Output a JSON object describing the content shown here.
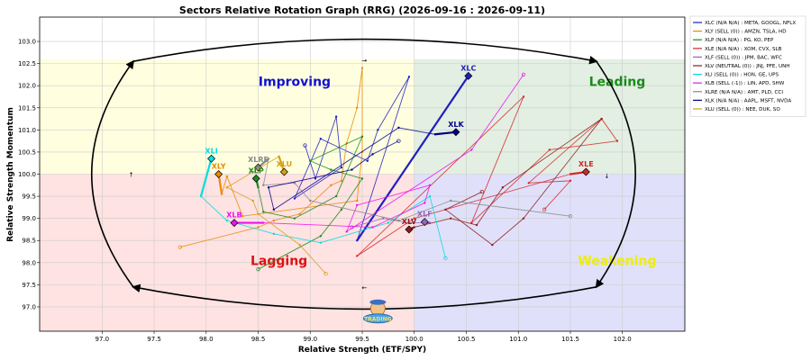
{
  "chart_data": {
    "type": "scatter",
    "title": "Sectors Relative Rotation Graph (RRG) (2026-09-16 : 2026-09-11)",
    "xlabel": "Relative Strength (ETF/SPY)",
    "ylabel": "Relative Strength Momentum",
    "xlim": [
      96.4,
      102.6
    ],
    "ylim": [
      96.45,
      103.55
    ],
    "xticks": [
      "97.0",
      "97.5",
      "98.0",
      "98.5",
      "99.0",
      "99.5",
      "100.0",
      "100.5",
      "101.0",
      "101.5",
      "102.0"
    ],
    "yticks": [
      "97.0",
      "97.5",
      "98.0",
      "98.5",
      "99.0",
      "99.5",
      "100.0",
      "100.5",
      "101.0",
      "101.5",
      "102.0",
      "102.5",
      "103.0"
    ],
    "grid": true,
    "legend_position": "upper right, outside",
    "quadrants": [
      {
        "name": "Improving",
        "color": "#1111cc",
        "fill": "#ffffe0",
        "lx": 98.85,
        "ly": 102.1
      },
      {
        "name": "Leading",
        "color": "#1a8a1a",
        "fill": "#e2efe2",
        "lx": 101.95,
        "ly": 102.1
      },
      {
        "name": "Lagging",
        "color": "#dd1111",
        "fill": "#ffe2e2",
        "lx": 98.7,
        "ly": 98.05
      },
      {
        "name": "Weakening",
        "color": "#eeee00",
        "fill": "#e0e0fa",
        "lx": 101.95,
        "ly": 98.05
      }
    ],
    "series": [
      {
        "name": "XLC (N/A N/A) : META, GOOGL, NFLX",
        "label": "XLC",
        "color": "#1f1fbf",
        "points": [
          [
            98.95,
            100.65
          ],
          [
            99.05,
            99.9
          ],
          [
            99.25,
            101.3
          ],
          [
            99.3,
            100.15
          ],
          [
            98.85,
            99.45
          ],
          [
            99.1,
            100.8
          ],
          [
            99.55,
            100.3
          ],
          [
            99.65,
            101.0
          ],
          [
            99.95,
            102.2
          ],
          [
            99.45,
            98.5
          ],
          [
            100.52,
            102.22
          ]
        ]
      },
      {
        "name": "XLY (SELL (0)) : AMZN, TSLA, HD",
        "label": "XLY",
        "color": "#e68a00",
        "points": [
          [
            97.75,
            98.35
          ],
          [
            98.5,
            98.8
          ],
          [
            98.65,
            98.95
          ],
          [
            98.9,
            99.1
          ],
          [
            99.2,
            99.75
          ],
          [
            99.3,
            99.85
          ],
          [
            99.35,
            100.7
          ],
          [
            99.45,
            101.5
          ],
          [
            99.5,
            102.4
          ],
          [
            99.5,
            100.5
          ],
          [
            99.45,
            99.4
          ],
          [
            98.35,
            99.05
          ],
          [
            98.2,
            99.95
          ],
          [
            98.15,
            99.55
          ],
          [
            98.12,
            100.0
          ]
        ]
      },
      {
        "name": "XLP (N/A N/A) : PG, KO, PEP",
        "label": "XLP",
        "color": "#1a8a1a",
        "points": [
          [
            98.5,
            97.85
          ],
          [
            99.1,
            98.6
          ],
          [
            99.3,
            99.2
          ],
          [
            99.5,
            99.9
          ],
          [
            99.2,
            100.1
          ],
          [
            99.0,
            100.3
          ],
          [
            99.5,
            100.85
          ],
          [
            99.25,
            99.5
          ],
          [
            98.85,
            99.0
          ],
          [
            98.55,
            99.15
          ],
          [
            98.5,
            99.7
          ],
          [
            98.48,
            99.9
          ]
        ]
      },
      {
        "name": "XLE (N/A N/A) : XOM, CVX, SLB",
        "label": "XLE",
        "color": "#d62728",
        "points": [
          [
            101.25,
            99.2
          ],
          [
            101.5,
            99.85
          ],
          [
            101.1,
            99.8
          ],
          [
            101.8,
            101.25
          ],
          [
            101.95,
            100.75
          ],
          [
            101.3,
            100.55
          ],
          [
            100.55,
            98.9
          ],
          [
            101.05,
            101.75
          ],
          [
            99.45,
            98.15
          ],
          [
            100.0,
            99.0
          ],
          [
            101.5,
            100.0
          ],
          [
            101.65,
            100.05
          ]
        ]
      },
      {
        "name": "XLF (SELL (0)) : JPM, BAC, WFC",
        "label": "XLF",
        "color": "#9467bd",
        "points": [
          [
            99.4,
            98.8
          ],
          [
            99.7,
            99.0
          ],
          [
            99.95,
            98.9
          ],
          [
            100.15,
            98.9
          ],
          [
            100.1,
            98.92
          ]
        ]
      },
      {
        "name": "XLV (NEUTRAL (0)) : JNJ, PFE, UNH",
        "label": "XLV",
        "color": "#8c1c1c",
        "points": [
          [
            100.65,
            99.6
          ],
          [
            100.3,
            99.2
          ],
          [
            100.75,
            98.4
          ],
          [
            101.05,
            99.0
          ],
          [
            101.8,
            101.25
          ],
          [
            100.85,
            99.7
          ],
          [
            100.6,
            98.85
          ],
          [
            100.35,
            99.0
          ],
          [
            100.0,
            98.8
          ],
          [
            99.95,
            98.75
          ]
        ]
      },
      {
        "name": "XLI (SELL (0)) : HON, GE, UPS",
        "label": "XLI",
        "color": "#00dddd",
        "points": [
          [
            100.3,
            98.1
          ],
          [
            100.15,
            99.5
          ],
          [
            99.75,
            98.9
          ],
          [
            99.1,
            98.45
          ],
          [
            98.65,
            98.65
          ],
          [
            98.2,
            98.95
          ],
          [
            97.95,
            99.5
          ],
          [
            98.05,
            100.35
          ]
        ]
      },
      {
        "name": "XLB (SELL (-1)) : LIN, APD, SHW",
        "label": "XLB",
        "color": "#ee11ee",
        "points": [
          [
            101.05,
            102.25
          ],
          [
            100.55,
            100.55
          ],
          [
            99.35,
            98.7
          ],
          [
            99.45,
            99.3
          ],
          [
            100.15,
            99.75
          ],
          [
            100.1,
            99.35
          ],
          [
            99.6,
            98.8
          ],
          [
            98.55,
            98.9
          ],
          [
            98.27,
            98.9
          ]
        ]
      },
      {
        "name": "XLRE (N/A N/A) : AMT, PLD, CCI",
        "label": "XLRE",
        "color": "#888888",
        "points": [
          [
            101.5,
            99.05
          ],
          [
            100.35,
            99.4
          ],
          [
            99.85,
            98.95
          ],
          [
            99.0,
            99.4
          ],
          [
            98.85,
            99.8
          ],
          [
            98.55,
            99.75
          ],
          [
            98.6,
            100.35
          ],
          [
            98.5,
            100.15
          ]
        ]
      },
      {
        "name": "XLK (N/A N/A) : AAPL, MSFT, NVDA",
        "label": "XLK",
        "color": "#00008b",
        "points": [
          [
            99.85,
            100.75
          ],
          [
            99.6,
            100.45
          ],
          [
            99.4,
            100.1
          ],
          [
            98.6,
            99.7
          ],
          [
            98.65,
            99.2
          ],
          [
            99.85,
            101.05
          ],
          [
            100.2,
            100.9
          ],
          [
            100.4,
            100.95
          ]
        ]
      },
      {
        "name": "XLU (SELL (0)) : NEE, DUK, SO",
        "label": "XLU",
        "color": "#d4a017",
        "points": [
          [
            99.15,
            97.75
          ],
          [
            98.9,
            98.4
          ],
          [
            98.5,
            99.1
          ],
          [
            98.45,
            99.4
          ],
          [
            98.2,
            99.7
          ],
          [
            98.45,
            100.05
          ],
          [
            98.7,
            100.4
          ],
          [
            98.75,
            100.05
          ]
        ]
      }
    ],
    "rotation_arrows": [
      "clockwise"
    ],
    "stray_marks": [
      "↑",
      "↓",
      "→",
      "←"
    ]
  },
  "watermark": "TRADING"
}
